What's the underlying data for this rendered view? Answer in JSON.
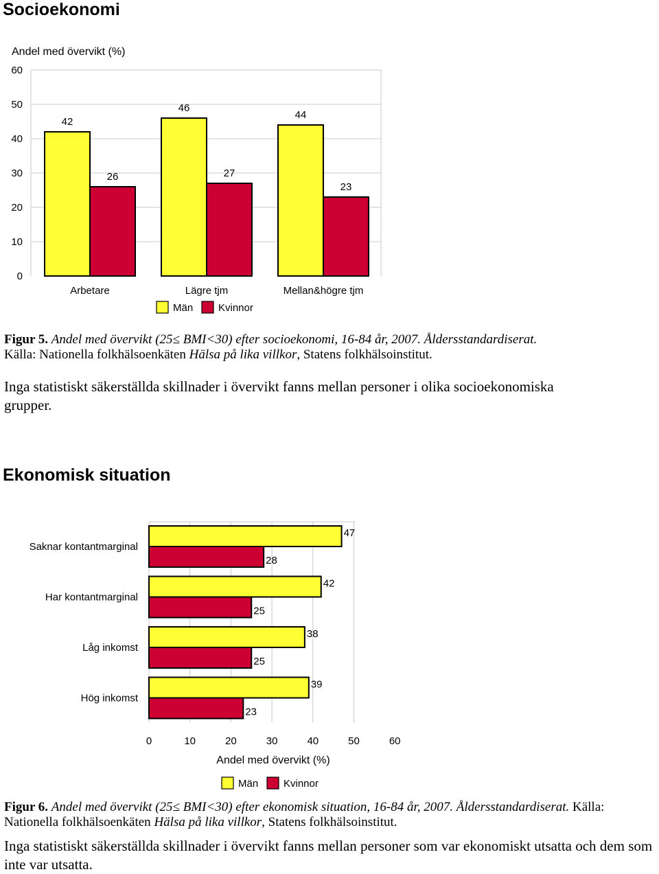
{
  "section1": {
    "heading": "Socioekonomi",
    "caption": {
      "fig_label": "Figur 5.",
      "title_italic": "Andel med övervikt (25≤ BMI<30) efter socioekonomi, 16-84 år, 2007. Åldersstandardiserat.",
      "source_prefix": "Källa: Nationella folkhälsoenkäten ",
      "source_italic": "Hälsa på lika villkor",
      "source_suffix": ", Statens folkhälsoinstitut."
    },
    "paragraph": "Inga statistiskt säkerställda skillnader i övervikt fanns mellan personer i olika socioekonomiska grupper."
  },
  "section2": {
    "heading": "Ekonomisk situation",
    "caption": {
      "fig_label": "Figur 6.",
      "title_italic": "Andel med övervikt (25≤ BMI<30) efter ekonomisk situation, 16-84 år, 2007. Åldersstandardiserat.",
      "source_prefix": " Källa: Nationella folkhälsoenkäten ",
      "source_italic": "Hälsa på lika villkor",
      "source_suffix": ", Statens folkhälsoinstitut."
    },
    "paragraph": "Inga statistiskt säkerställda skillnader i övervikt fanns mellan personer som var ekonomiskt utsatta och dem som inte var utsatta."
  },
  "colors": {
    "man": "#ffff33",
    "kvinnor": "#cc0033",
    "grid": "#c8c8c8"
  },
  "chart_data": [
    {
      "type": "bar",
      "orientation": "vertical",
      "ylabel": "Andel med övervikt (%)",
      "ylim": [
        0,
        60
      ],
      "yticks": [
        0,
        10,
        20,
        30,
        40,
        50,
        60
      ],
      "categories": [
        "Arbetare",
        "Lägre tjm",
        "Mellan&högre tjm"
      ],
      "series": [
        {
          "name": "Män",
          "values": [
            42,
            46,
            44
          ]
        },
        {
          "name": "Kvinnor",
          "values": [
            26,
            27,
            23
          ]
        }
      ],
      "legend": "bottom"
    },
    {
      "type": "bar",
      "orientation": "horizontal",
      "xlabel": "Andel med övervikt (%)",
      "xlim": [
        0,
        60
      ],
      "xticks": [
        0,
        10,
        20,
        30,
        40,
        50,
        60
      ],
      "categories": [
        "Saknar kontantmarginal",
        "Har kontantmarginal",
        "Låg inkomst",
        "Hög inkomst"
      ],
      "series": [
        {
          "name": "Män",
          "values": [
            47,
            42,
            38,
            39
          ]
        },
        {
          "name": "Kvinnor",
          "values": [
            28,
            25,
            25,
            23
          ]
        }
      ],
      "legend": "bottom"
    }
  ]
}
